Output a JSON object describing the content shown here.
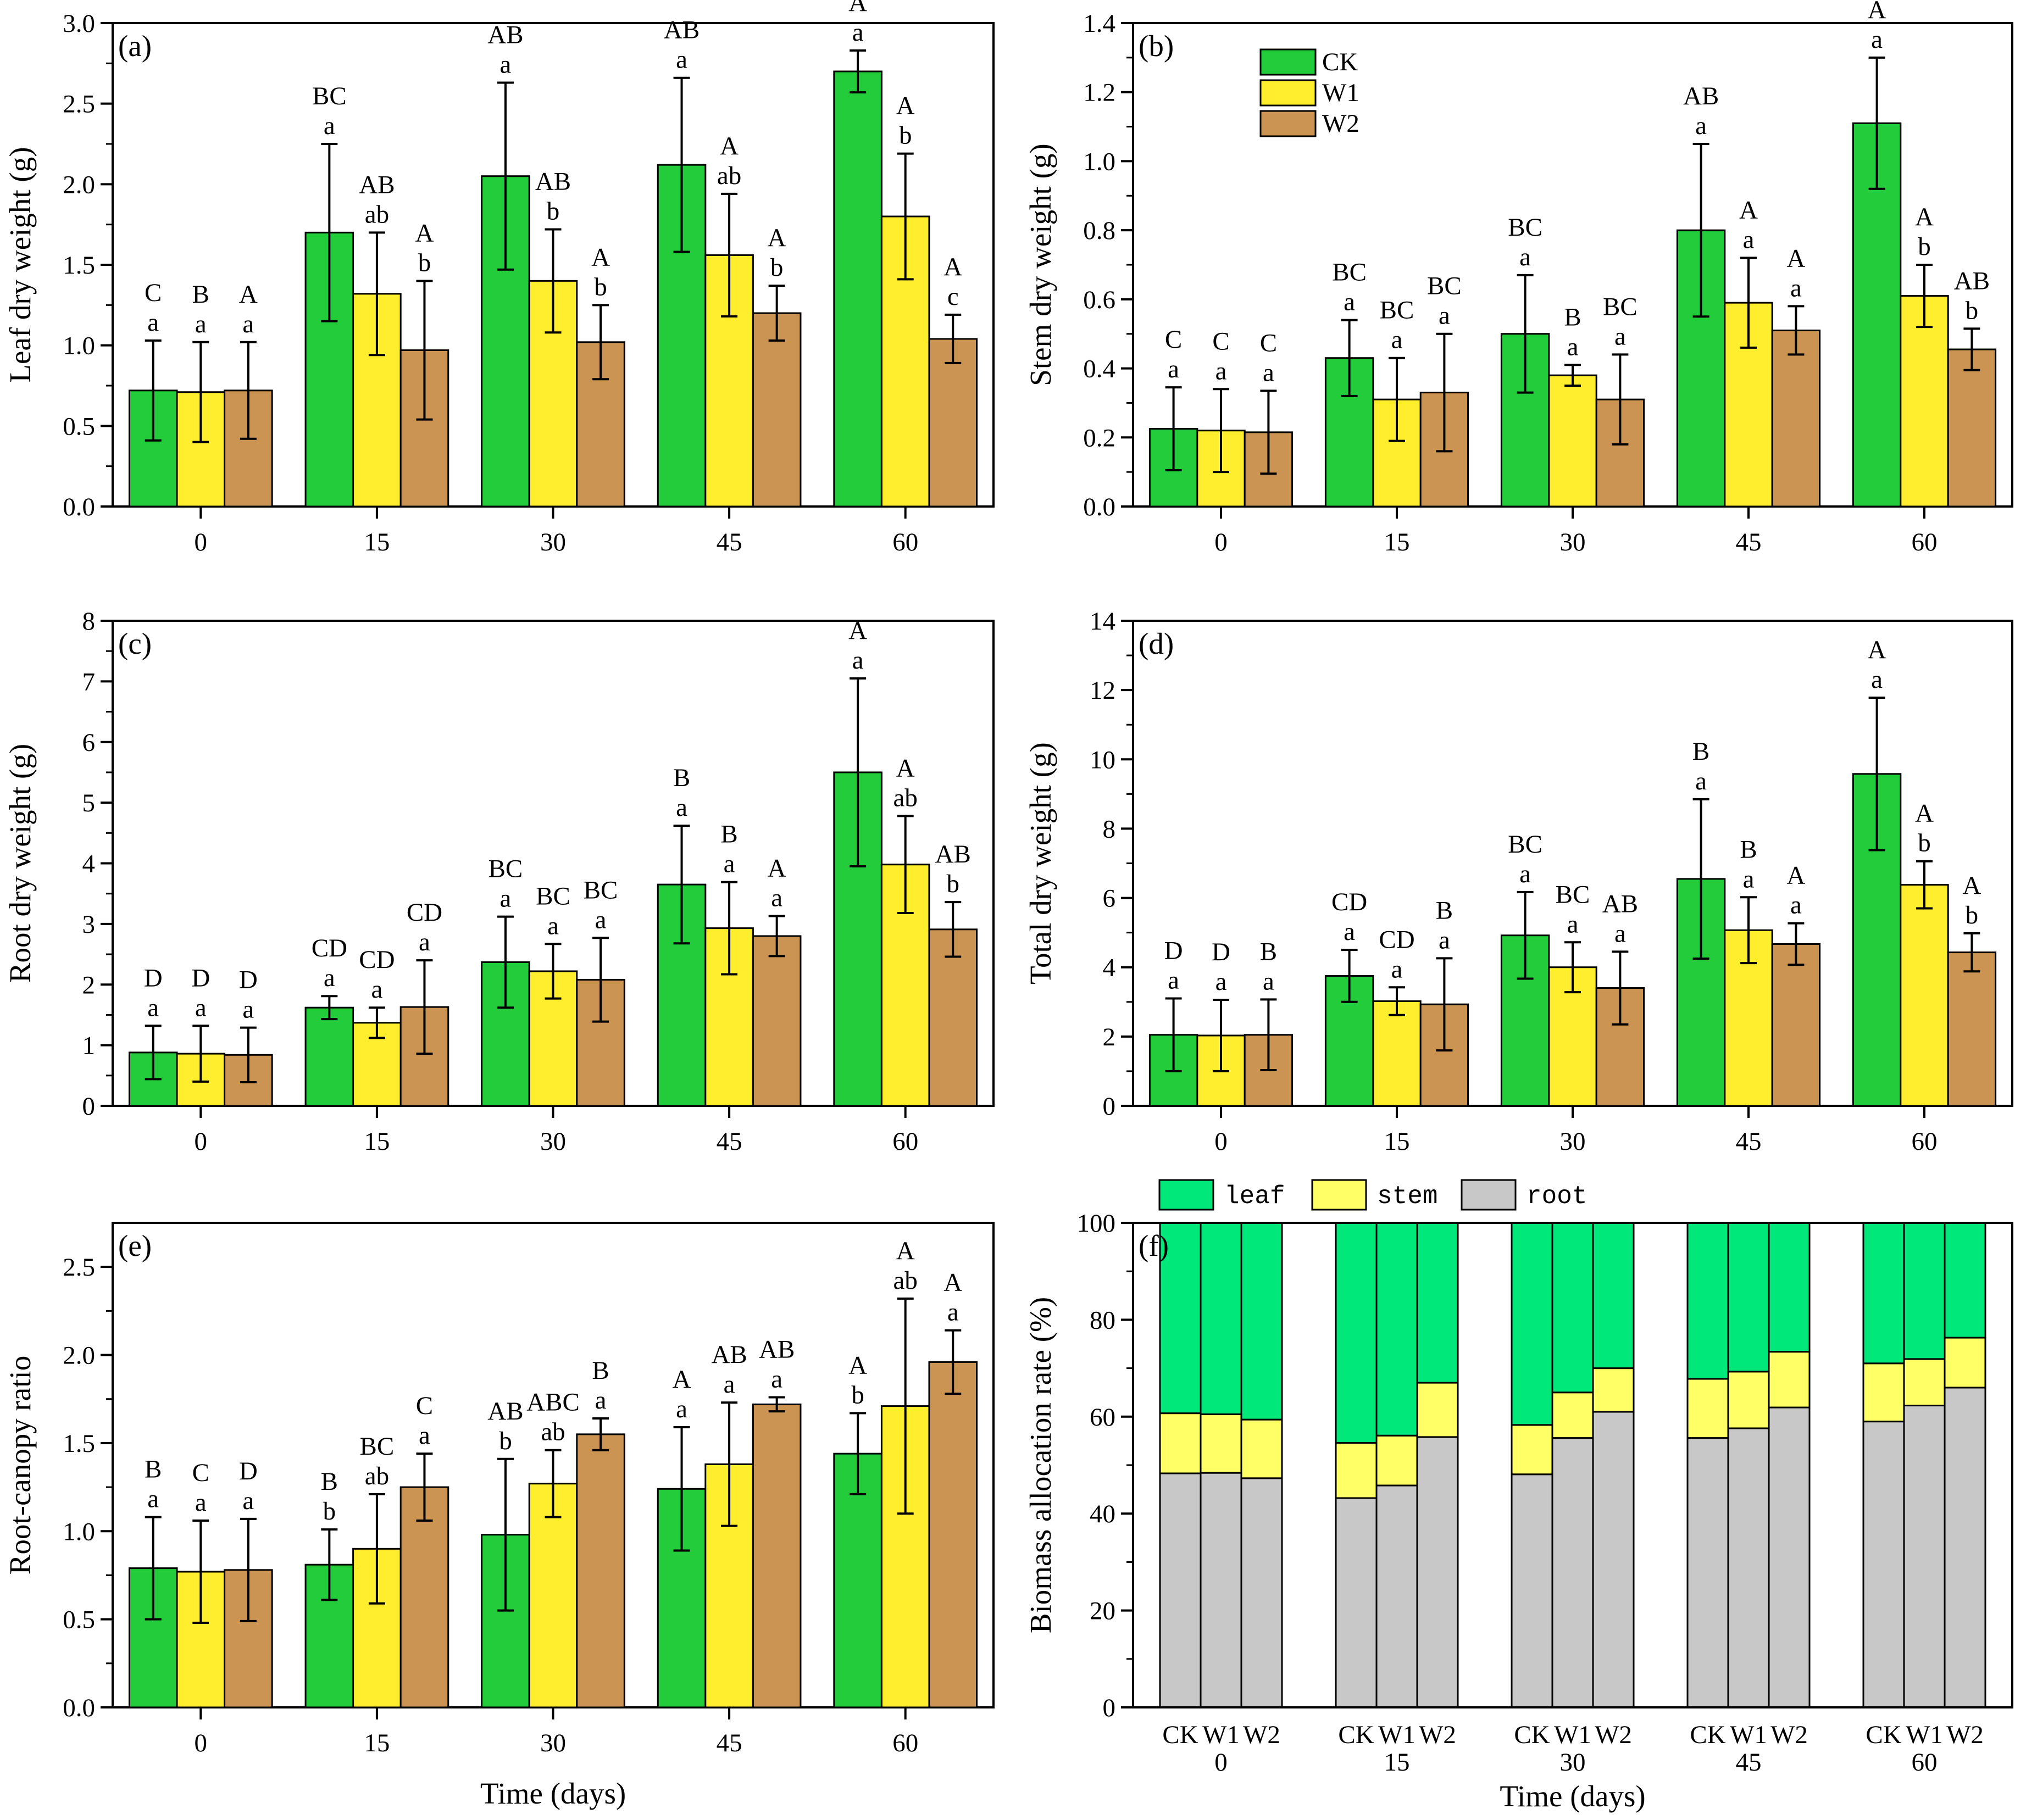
{
  "figure": {
    "shared_xlabel": "Time (days)",
    "colors": {
      "CK": "#22cc3a",
      "W1": "#ffee2e",
      "W2": "#cc9452",
      "leaf": "#00e87a",
      "stem": "#ffff66",
      "root": "#c8c8c8"
    }
  },
  "chart_data": [
    {
      "id": "a",
      "type": "bar",
      "panel_label": "(a)",
      "title": "",
      "xlabel": "",
      "ylabel": "Leaf dry weight (g)",
      "categories": [
        "0",
        "15",
        "30",
        "45",
        "60"
      ],
      "ylim": [
        0,
        3.0
      ],
      "yticks": [
        "0.0",
        "0.5",
        "1.0",
        "1.5",
        "2.0",
        "2.5",
        "3.0"
      ],
      "legend": null,
      "series": [
        {
          "name": "CK",
          "values": [
            0.72,
            1.7,
            2.05,
            2.12,
            2.7
          ],
          "errors": [
            0.31,
            0.55,
            0.58,
            0.54,
            0.13
          ],
          "letters_upper": [
            "C",
            "BC",
            "AB",
            "AB",
            "A"
          ],
          "letters_lower": [
            "a",
            "a",
            "a",
            "a",
            "a"
          ]
        },
        {
          "name": "W1",
          "values": [
            0.71,
            1.32,
            1.4,
            1.56,
            1.8
          ],
          "errors": [
            0.31,
            0.38,
            0.32,
            0.38,
            0.39
          ],
          "letters_upper": [
            "B",
            "AB",
            "AB",
            "A",
            "A"
          ],
          "letters_lower": [
            "a",
            "ab",
            "b",
            "ab",
            "b"
          ]
        },
        {
          "name": "W2",
          "values": [
            0.72,
            0.97,
            1.02,
            1.2,
            1.04
          ],
          "errors": [
            0.3,
            0.43,
            0.23,
            0.17,
            0.15
          ],
          "letters_upper": [
            "A",
            "A",
            "A",
            "A",
            "A"
          ],
          "letters_lower": [
            "a",
            "b",
            "b",
            "b",
            "c"
          ]
        }
      ]
    },
    {
      "id": "b",
      "type": "bar",
      "panel_label": "(b)",
      "title": "",
      "xlabel": "",
      "ylabel": "Stem dry weight (g)",
      "categories": [
        "0",
        "15",
        "30",
        "45",
        "60"
      ],
      "ylim": [
        0,
        1.4
      ],
      "yticks": [
        "0.0",
        "0.2",
        "0.4",
        "0.6",
        "0.8",
        "1.0",
        "1.2",
        "1.4"
      ],
      "legend": [
        "CK",
        "W1",
        "W2"
      ],
      "series": [
        {
          "name": "CK",
          "values": [
            0.225,
            0.43,
            0.5,
            0.8,
            1.11
          ],
          "errors": [
            0.12,
            0.11,
            0.17,
            0.25,
            0.19
          ],
          "letters_upper": [
            "C",
            "BC",
            "BC",
            "AB",
            "A"
          ],
          "letters_lower": [
            "a",
            "a",
            "a",
            "a",
            "a"
          ]
        },
        {
          "name": "W1",
          "values": [
            0.22,
            0.31,
            0.38,
            0.59,
            0.61
          ],
          "errors": [
            0.12,
            0.12,
            0.03,
            0.13,
            0.09
          ],
          "letters_upper": [
            "C",
            "BC",
            "B",
            "A",
            "A"
          ],
          "letters_lower": [
            "a",
            "a",
            "a",
            "a",
            "b"
          ]
        },
        {
          "name": "W2",
          "values": [
            0.215,
            0.33,
            0.31,
            0.51,
            0.455
          ],
          "errors": [
            0.12,
            0.17,
            0.13,
            0.07,
            0.06
          ],
          "letters_upper": [
            "C",
            "BC",
            "BC",
            "A",
            "AB"
          ],
          "letters_lower": [
            "a",
            "a",
            "a",
            "a",
            "b"
          ]
        }
      ]
    },
    {
      "id": "c",
      "type": "bar",
      "panel_label": "(c)",
      "title": "",
      "xlabel": "",
      "ylabel": "Root dry weight (g)",
      "categories": [
        "0",
        "15",
        "30",
        "45",
        "60"
      ],
      "ylim": [
        0,
        8
      ],
      "yticks": [
        "0",
        "1",
        "2",
        "3",
        "4",
        "5",
        "6",
        "7",
        "8"
      ],
      "legend": null,
      "series": [
        {
          "name": "CK",
          "values": [
            0.88,
            1.62,
            2.37,
            3.65,
            5.5
          ],
          "errors": [
            0.44,
            0.19,
            0.75,
            0.97,
            1.55
          ],
          "letters_upper": [
            "D",
            "CD",
            "BC",
            "B",
            "A"
          ],
          "letters_lower": [
            "a",
            "a",
            "a",
            "a",
            "a"
          ]
        },
        {
          "name": "W1",
          "values": [
            0.86,
            1.37,
            2.22,
            2.93,
            3.98
          ],
          "errors": [
            0.46,
            0.25,
            0.45,
            0.76,
            0.8
          ],
          "letters_upper": [
            "D",
            "CD",
            "BC",
            "B",
            "A"
          ],
          "letters_lower": [
            "a",
            "a",
            "a",
            "a",
            "ab"
          ]
        },
        {
          "name": "W2",
          "values": [
            0.84,
            1.63,
            2.08,
            2.8,
            2.91
          ],
          "errors": [
            0.45,
            0.77,
            0.69,
            0.33,
            0.45
          ],
          "letters_upper": [
            "D",
            "CD",
            "BC",
            "A",
            "AB"
          ],
          "letters_lower": [
            "a",
            "a",
            "a",
            "a",
            "b"
          ]
        }
      ]
    },
    {
      "id": "d",
      "type": "bar",
      "panel_label": "(d)",
      "title": "",
      "xlabel": "",
      "ylabel": "Total dry weight (g)",
      "categories": [
        "0",
        "15",
        "30",
        "45",
        "60"
      ],
      "ylim": [
        0,
        14
      ],
      "yticks": [
        "0",
        "2",
        "4",
        "6",
        "8",
        "10",
        "12",
        "14"
      ],
      "legend": null,
      "series": [
        {
          "name": "CK",
          "values": [
            2.05,
            3.75,
            4.92,
            6.55,
            9.58
          ],
          "errors": [
            1.05,
            0.75,
            1.25,
            2.3,
            2.2
          ],
          "letters_upper": [
            "D",
            "CD",
            "BC",
            "B",
            "A"
          ],
          "letters_lower": [
            "a",
            "a",
            "a",
            "a",
            "a"
          ]
        },
        {
          "name": "W1",
          "values": [
            2.03,
            3.02,
            4.0,
            5.07,
            6.38
          ],
          "errors": [
            1.03,
            0.4,
            0.72,
            0.95,
            0.68
          ],
          "letters_upper": [
            "D",
            "CD",
            "BC",
            "B",
            "A"
          ],
          "letters_lower": [
            "a",
            "a",
            "a",
            "a",
            "b"
          ]
        },
        {
          "name": "W2",
          "values": [
            2.05,
            2.93,
            3.4,
            4.67,
            4.43
          ],
          "errors": [
            1.02,
            1.33,
            1.05,
            0.6,
            0.55
          ],
          "letters_upper": [
            "B",
            "B",
            "AB",
            "A",
            "A"
          ],
          "letters_lower": [
            "a",
            "a",
            "a",
            "a",
            "b"
          ]
        }
      ]
    },
    {
      "id": "e",
      "type": "bar",
      "panel_label": "(e)",
      "title": "",
      "xlabel": "Time (days)",
      "ylabel": "Root-canopy ratio",
      "categories": [
        "0",
        "15",
        "30",
        "45",
        "60"
      ],
      "ylim": [
        0,
        2.75
      ],
      "yticks": [
        "0.0",
        "0.5",
        "1.0",
        "1.5",
        "2.0",
        "2.5"
      ],
      "legend": null,
      "series": [
        {
          "name": "CK",
          "values": [
            0.79,
            0.81,
            0.98,
            1.24,
            1.44
          ],
          "errors": [
            0.29,
            0.2,
            0.43,
            0.35,
            0.23
          ],
          "letters_upper": [
            "B",
            "B",
            "AB",
            "A",
            "A"
          ],
          "letters_lower": [
            "a",
            "b",
            "b",
            "a",
            "b"
          ]
        },
        {
          "name": "W1",
          "values": [
            0.77,
            0.9,
            1.27,
            1.38,
            1.71
          ],
          "errors": [
            0.29,
            0.31,
            0.19,
            0.35,
            0.61
          ],
          "letters_upper": [
            "C",
            "BC",
            "ABC",
            "AB",
            "A"
          ],
          "letters_lower": [
            "a",
            "ab",
            "ab",
            "a",
            "ab"
          ]
        },
        {
          "name": "W2",
          "values": [
            0.78,
            1.25,
            1.55,
            1.72,
            1.96
          ],
          "errors": [
            0.29,
            0.19,
            0.09,
            0.04,
            0.18
          ],
          "letters_upper": [
            "D",
            "C",
            "B",
            "AB",
            "A"
          ],
          "letters_lower": [
            "a",
            "a",
            "a",
            "a",
            "a"
          ]
        }
      ]
    },
    {
      "id": "f",
      "type": "bar",
      "stacked": true,
      "panel_label": "(f)",
      "title": "",
      "xlabel": "Time (days)",
      "ylabel": "Biomass allocation rate (%)",
      "categories": [
        "0",
        "15",
        "30",
        "45",
        "60"
      ],
      "treatments": [
        "CK",
        "W1",
        "W2"
      ],
      "ylim": [
        0,
        100
      ],
      "yticks": [
        "0",
        "20",
        "40",
        "60",
        "80",
        "100"
      ],
      "legend": [
        "leaf",
        "stem",
        "root"
      ],
      "series": [
        {
          "name": "root",
          "values": [
            [
              48.3,
              48.4,
              47.3
            ],
            [
              43.2,
              45.8,
              55.8
            ],
            [
              48.1,
              55.6,
              61.0
            ],
            [
              55.6,
              57.6,
              61.9
            ],
            [
              59.0,
              62.3,
              66.0
            ]
          ]
        },
        {
          "name": "stem",
          "values": [
            [
              12.4,
              12.1,
              12.1
            ],
            [
              11.4,
              10.3,
              11.2
            ],
            [
              10.2,
              9.4,
              9.0
            ],
            [
              12.2,
              11.7,
              11.5
            ],
            [
              12.0,
              9.6,
              10.3
            ]
          ]
        },
        {
          "name": "leaf",
          "values": [
            [
              39.3,
              39.5,
              40.6
            ],
            [
              45.4,
              43.9,
              33.0
            ],
            [
              41.7,
              35.0,
              30.0
            ],
            [
              32.2,
              30.7,
              26.6
            ],
            [
              29.0,
              28.1,
              23.7
            ]
          ]
        }
      ]
    }
  ]
}
